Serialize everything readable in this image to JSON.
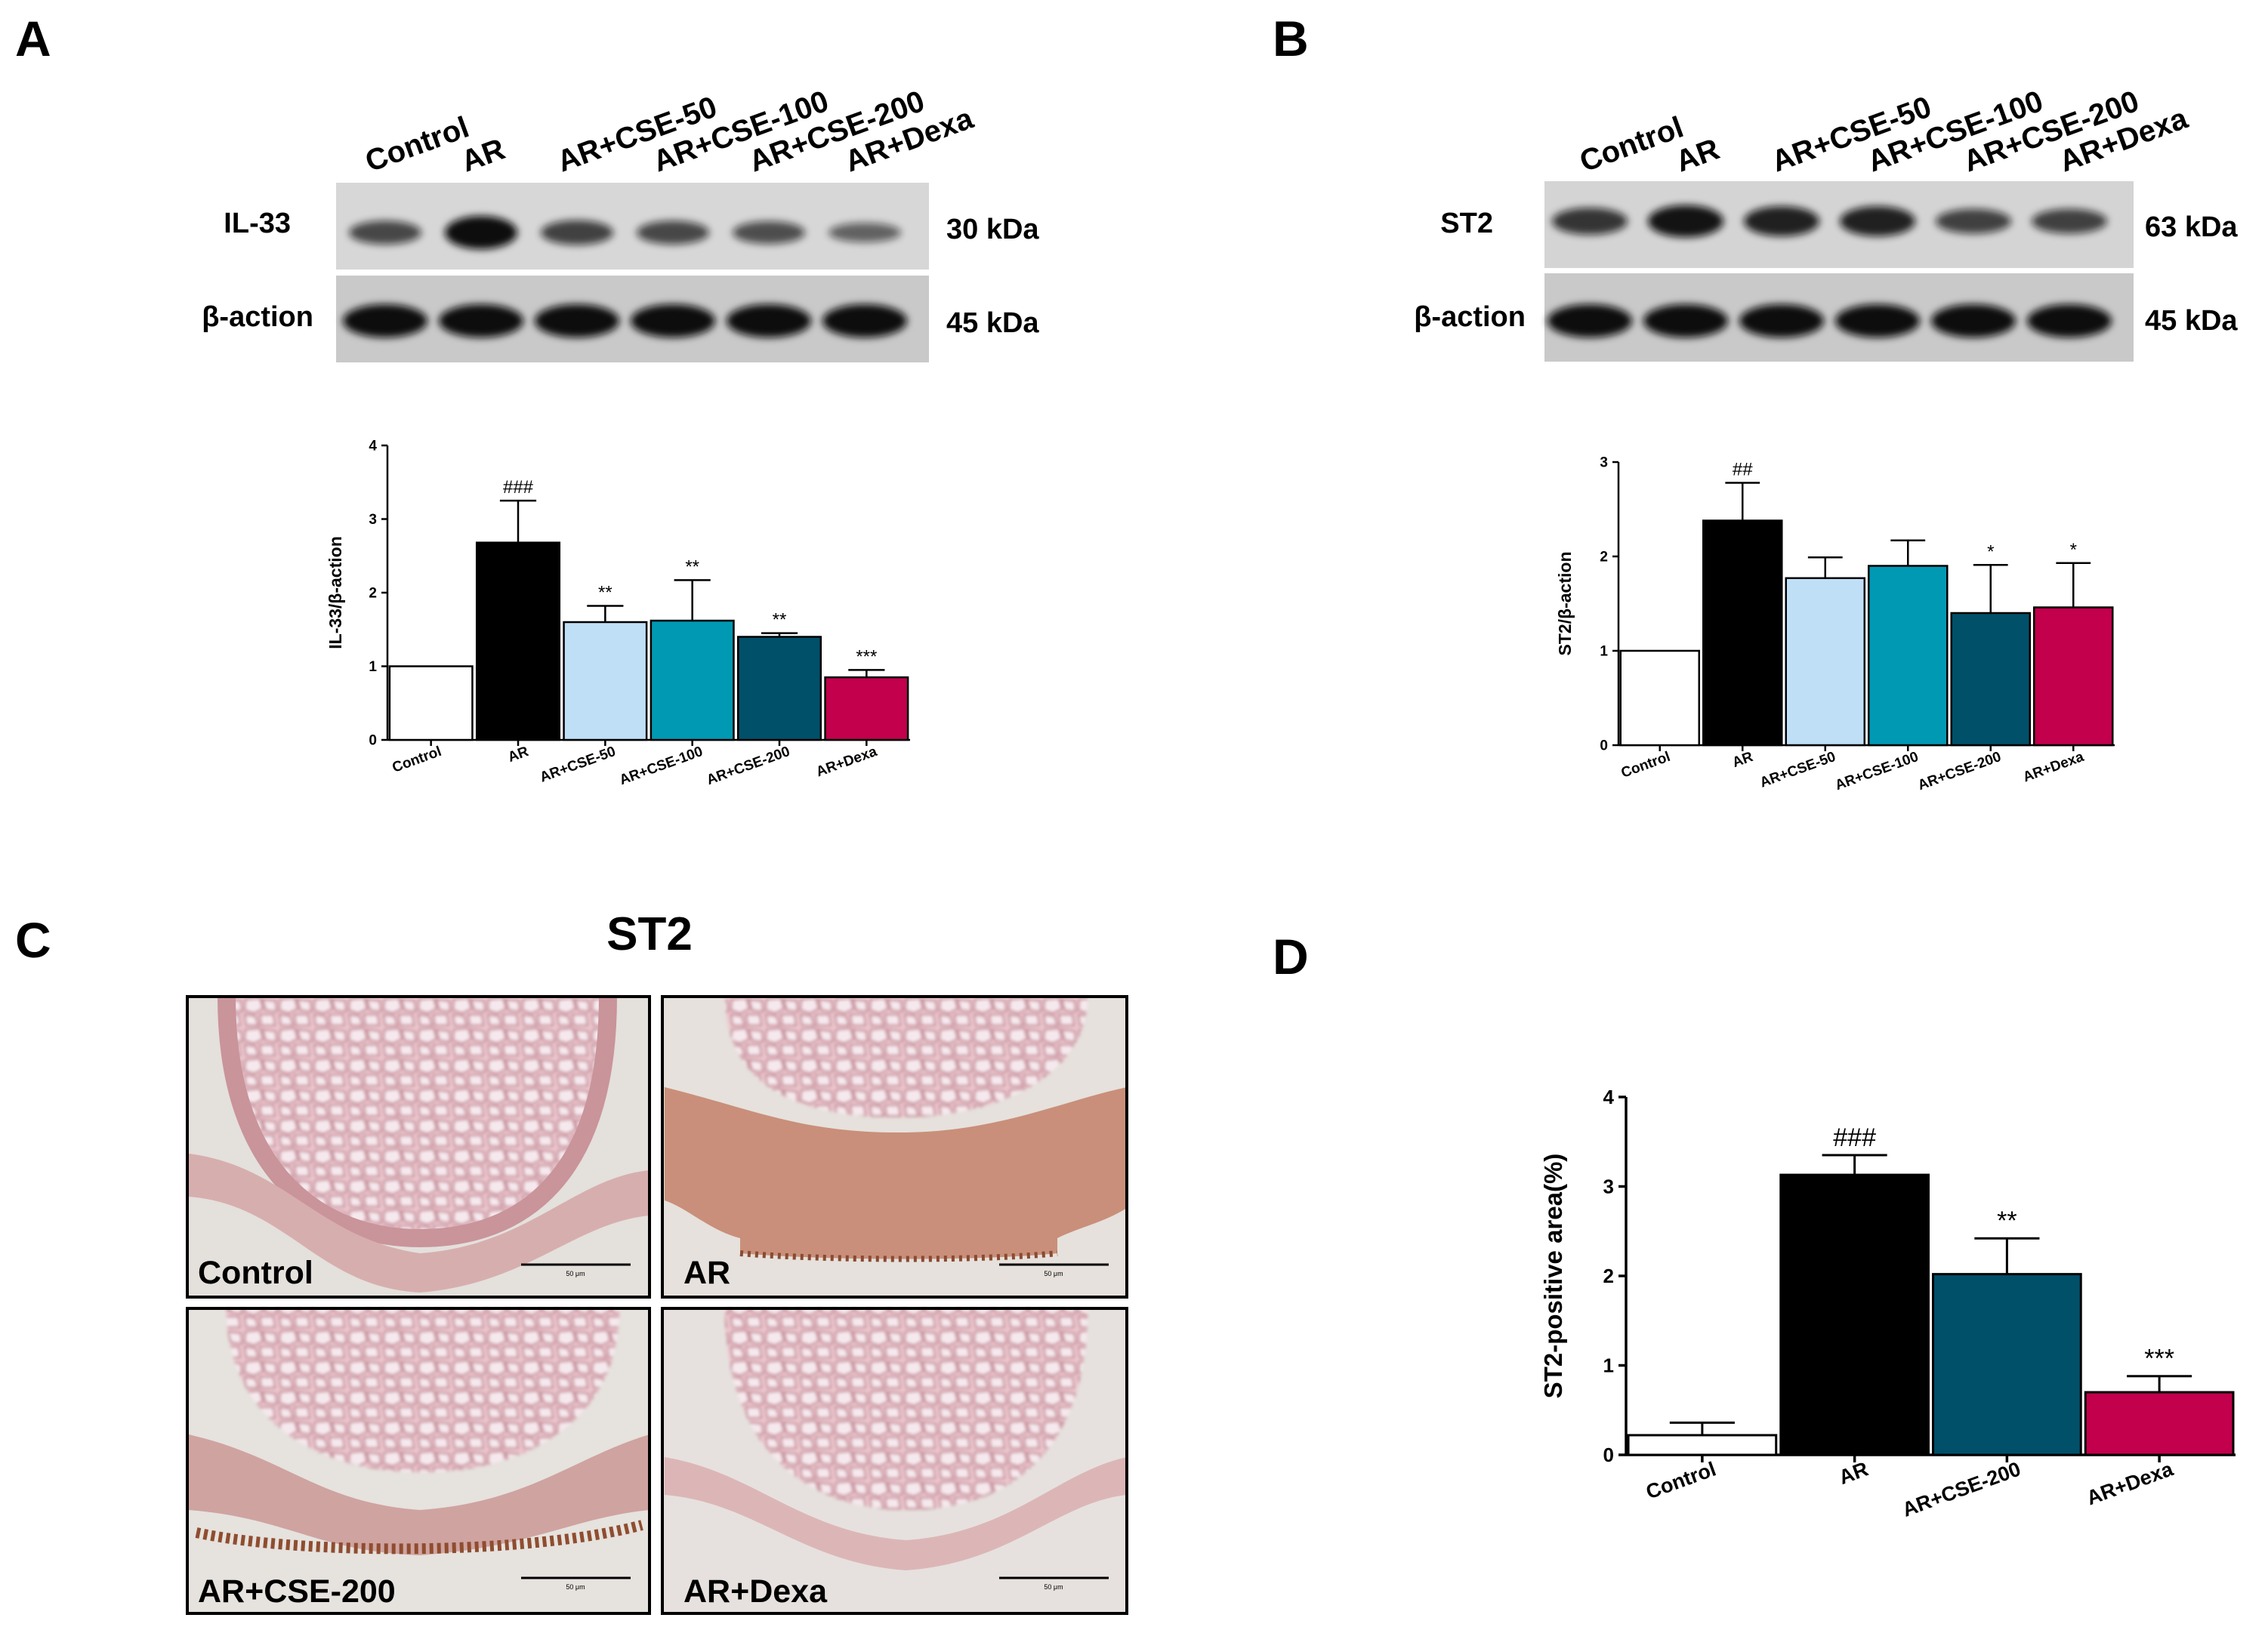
{
  "panels": {
    "A": {
      "letter": "A",
      "lanes": [
        "Control",
        "AR",
        "AR+CSE-50",
        "AR+CSE-100",
        "AR+CSE-200",
        "AR+Dexa"
      ],
      "blots": [
        {
          "protein": "IL-33",
          "kda": "30 kDa",
          "intensity": [
            0.55,
            1.0,
            0.6,
            0.55,
            0.5,
            0.35
          ]
        },
        {
          "protein": "β-action",
          "kda": "45 kDa",
          "intensity": [
            1.0,
            1.0,
            1.0,
            1.0,
            1.0,
            1.0
          ]
        }
      ]
    },
    "B": {
      "letter": "B",
      "lanes": [
        "Control",
        "AR",
        "AR+CSE-50",
        "AR+CSE-100",
        "AR+CSE-200",
        "AR+Dexa"
      ],
      "blots": [
        {
          "protein": "ST2",
          "kda": "63 kDa",
          "intensity": [
            0.7,
            0.95,
            0.85,
            0.85,
            0.6,
            0.6
          ]
        },
        {
          "protein": "β-action",
          "kda": "45 kDa",
          "intensity": [
            1.0,
            1.0,
            1.0,
            1.0,
            1.0,
            1.0
          ]
        }
      ]
    },
    "C": {
      "letter": "C",
      "title": "ST2",
      "images": [
        "Control",
        "AR",
        "AR+CSE-200",
        "AR+Dexa"
      ],
      "scale_text": "50 μm"
    },
    "D": {
      "letter": "D"
    }
  },
  "chart_data": [
    {
      "panel": "A",
      "type": "bar",
      "categories": [
        "Control",
        "AR",
        "AR+CSE-50",
        "AR+CSE-100",
        "AR+CSE-200",
        "AR+Dexa"
      ],
      "values": [
        1.0,
        2.68,
        1.6,
        1.62,
        1.4,
        0.85
      ],
      "errors": [
        0,
        0.57,
        0.22,
        0.55,
        0.05,
        0.1
      ],
      "annotations": [
        "",
        "###",
        "**",
        "**",
        "**",
        "***"
      ],
      "colors": [
        "#ffffff",
        "#000000",
        "#bfdff7",
        "#0099b3",
        "#00506a",
        "#c2004c"
      ],
      "title": "",
      "xlabel": "",
      "ylabel": "IL-33/β-action",
      "ylim": [
        0,
        4
      ],
      "yticks": [
        0,
        1,
        2,
        3,
        4
      ]
    },
    {
      "panel": "B",
      "type": "bar",
      "categories": [
        "Control",
        "AR",
        "AR+CSE-50",
        "AR+CSE-100",
        "AR+CSE-200",
        "AR+Dexa"
      ],
      "values": [
        1.0,
        2.38,
        1.77,
        1.9,
        1.4,
        1.46
      ],
      "errors": [
        0,
        0.4,
        0.22,
        0.27,
        0.51,
        0.47
      ],
      "annotations": [
        "",
        "##",
        "",
        "",
        "*",
        "*"
      ],
      "colors": [
        "#ffffff",
        "#000000",
        "#bfdff7",
        "#0099b3",
        "#00506a",
        "#c2004c"
      ],
      "title": "",
      "xlabel": "",
      "ylabel": "ST2/β-action",
      "ylim": [
        0,
        3
      ],
      "yticks": [
        0,
        1,
        2,
        3
      ]
    },
    {
      "panel": "D",
      "type": "bar",
      "categories": [
        "Control",
        "AR",
        "AR+CSE-200",
        "AR+Dexa"
      ],
      "values": [
        0.22,
        3.13,
        2.02,
        0.7
      ],
      "errors": [
        0.14,
        0.22,
        0.4,
        0.18
      ],
      "annotations": [
        "",
        "###",
        "**",
        "***"
      ],
      "colors": [
        "#ffffff",
        "#000000",
        "#00506a",
        "#c2004c"
      ],
      "title": "",
      "xlabel": "",
      "ylabel": "ST2-positive area(%)",
      "ylim": [
        0,
        4
      ],
      "yticks": [
        0,
        1,
        2,
        3,
        4
      ]
    }
  ]
}
